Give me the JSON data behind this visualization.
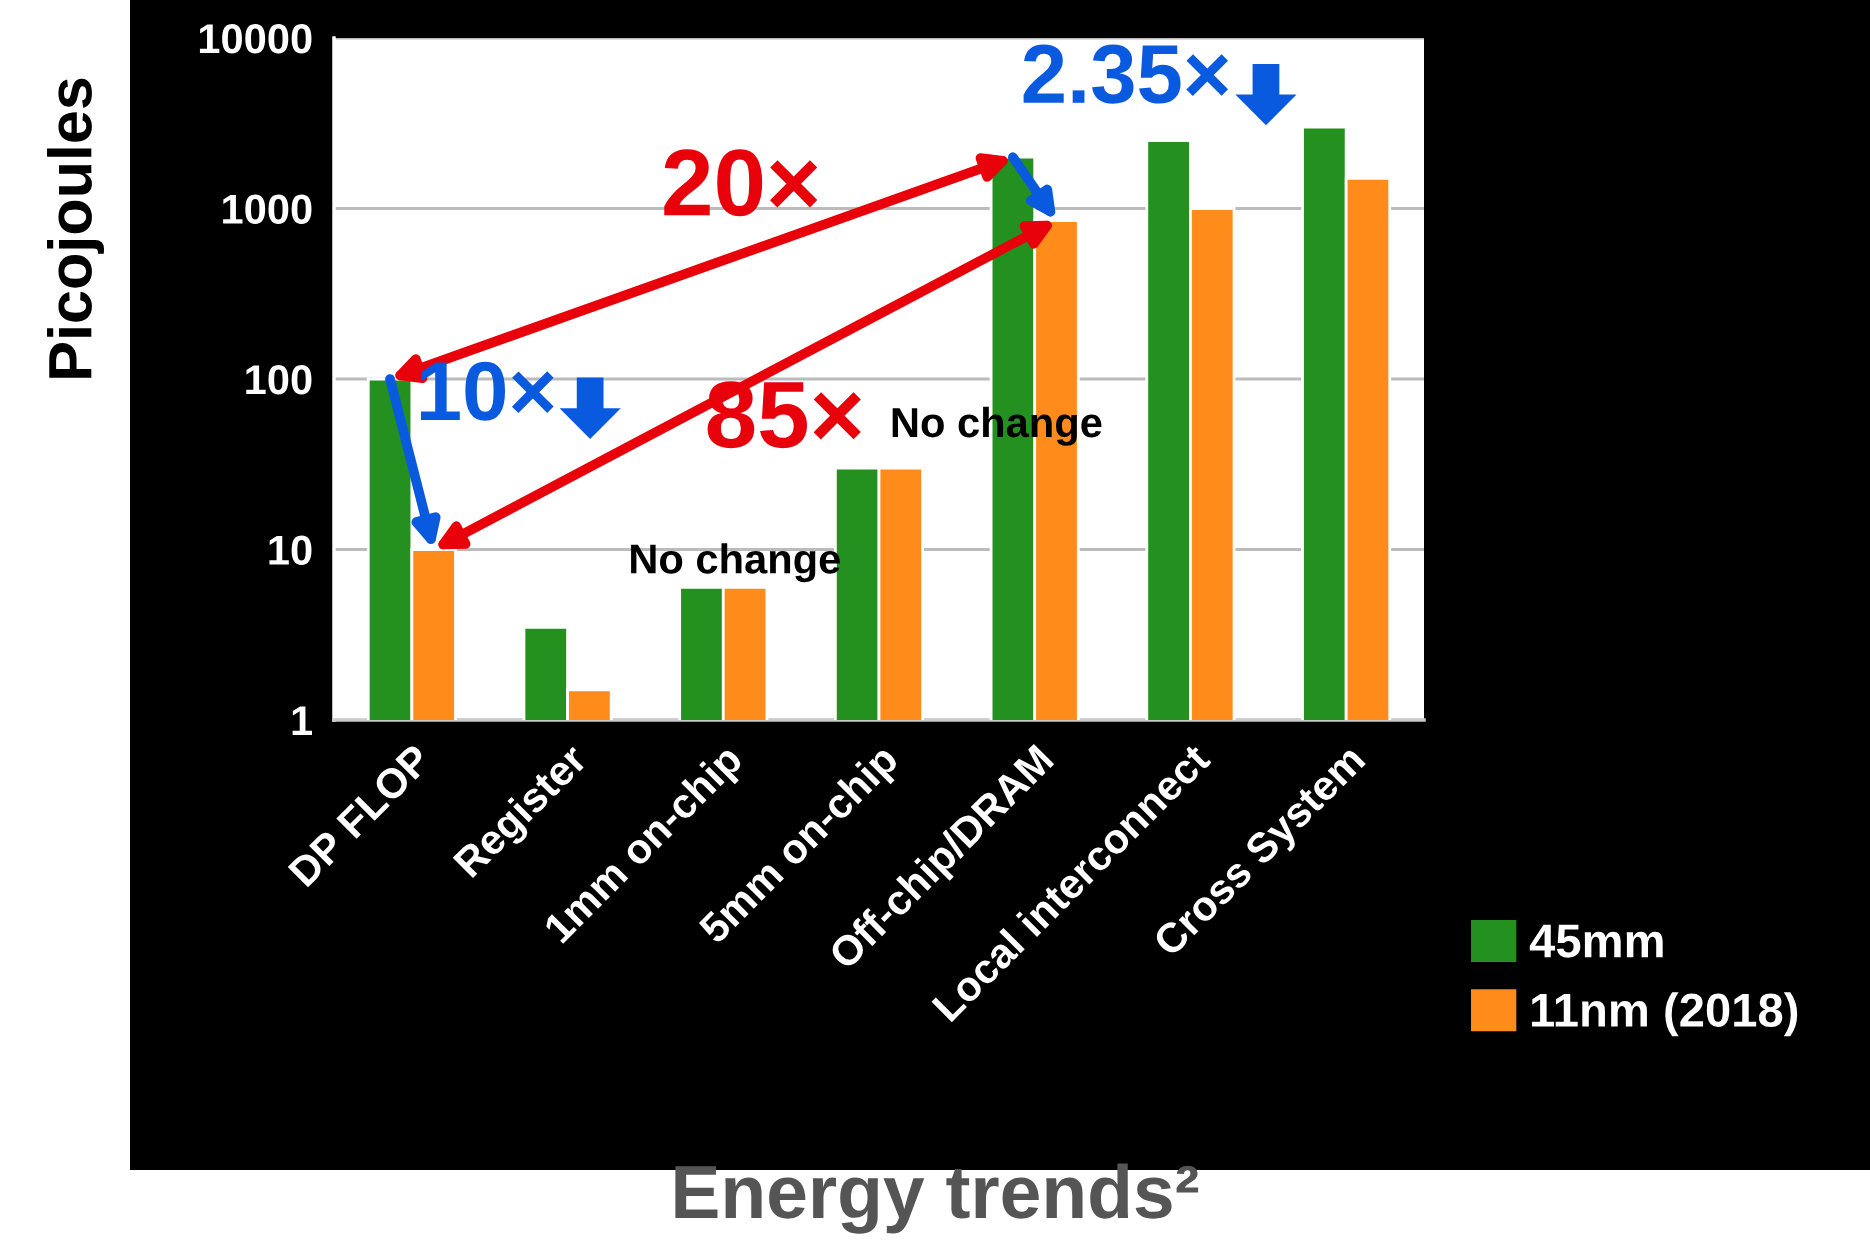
{
  "chart_data": {
    "type": "bar",
    "title": "Energy trends²",
    "ylabel": "Picojoules",
    "categories": [
      "DP FLOP",
      "Register",
      "1mm on-chip",
      "5mm on-chip",
      "Off-chip/DRAM",
      "Local interconnect",
      "Cross System"
    ],
    "series": [
      {
        "name": "45mm",
        "color": "#23901f",
        "values": [
          100,
          3.5,
          6,
          30,
          2000,
          2500,
          3000
        ]
      },
      {
        "name": "11nm (2018)",
        "color": "#ff8c1a",
        "values": [
          10,
          1.5,
          6,
          30,
          850,
          1000,
          1500
        ]
      }
    ],
    "log": true,
    "ylim": [
      1,
      10000
    ],
    "yticks": [
      1,
      10,
      100,
      1000,
      10000
    ],
    "grid": "y",
    "legend": "bottom right",
    "annotations": [
      "20×",
      "85×",
      "10×",
      "2.35×",
      "No change",
      "No change"
    ]
  }
}
